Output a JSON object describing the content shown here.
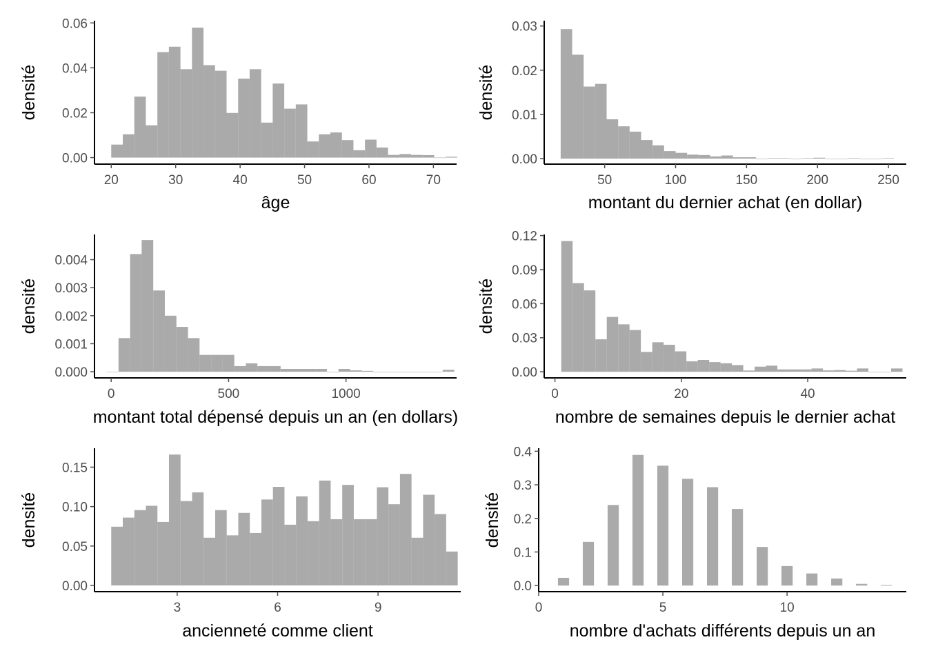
{
  "colors": {
    "bar": "#aaaaaa",
    "axis": "#000000",
    "tick_text": "#4d4d4d",
    "background": "#ffffff"
  },
  "chart_data": [
    {
      "type": "bar",
      "title": "",
      "xlabel": "âge",
      "ylabel": "densité",
      "xlim": [
        17.4,
        73.6
      ],
      "ylim": [
        -0.0029,
        0.061
      ],
      "x_ticks": [
        20,
        30,
        40,
        50,
        60,
        70
      ],
      "x_tick_labels": [
        "20",
        "30",
        "40",
        "50",
        "60",
        "70"
      ],
      "y_ticks": [
        0,
        0.02,
        0.04,
        0.06
      ],
      "y_tick_labels": [
        "0.00",
        "0.02",
        "0.04",
        "0.06"
      ],
      "bin_start": 20,
      "bin_width": 1.79,
      "values": [
        0.0058,
        0.0104,
        0.0272,
        0.0144,
        0.047,
        0.0494,
        0.0394,
        0.0579,
        0.0412,
        0.0387,
        0.0199,
        0.0352,
        0.0394,
        0.0156,
        0.033,
        0.0218,
        0.0237,
        0.0072,
        0.0104,
        0.0112,
        0.0078,
        0.0033,
        0.008,
        0.0045,
        0.0012,
        0.0016,
        0.0012,
        0.0011,
        0,
        0.0004
      ],
      "grid": false,
      "legend": "none"
    },
    {
      "type": "bar",
      "title": "",
      "xlabel": "montant du dernier achat (en dollar)",
      "ylabel": "densité",
      "xlim": [
        7.4,
        262.6
      ],
      "ylim": [
        -0.00125,
        0.0312
      ],
      "x_ticks": [
        50,
        100,
        150,
        200,
        250
      ],
      "x_tick_labels": [
        "50",
        "100",
        "150",
        "200",
        "250"
      ],
      "y_ticks": [
        0,
        0.01,
        0.02,
        0.03
      ],
      "y_tick_labels": [
        "0.00",
        "0.01",
        "0.02",
        "0.03"
      ],
      "bin_start": 19,
      "bin_width": 8.1,
      "values": [
        0.0293,
        0.0235,
        0.0163,
        0.0169,
        0.0089,
        0.0073,
        0.0061,
        0.0042,
        0.003,
        0.0017,
        0.0013,
        0.0009,
        0.0008,
        0.0005,
        0.0007,
        0.0003,
        0.0003,
        0,
        0.0001,
        0.0001,
        0,
        0.0001,
        0.0002,
        0,
        0,
        0.0001,
        0,
        0,
        0.0001
      ],
      "grid": false,
      "legend": "none"
    },
    {
      "type": "bar",
      "title": "",
      "xlabel": "montant total dépensé depuis un an (en dollars)",
      "ylabel": "densité",
      "xlim": [
        -71,
        1471
      ],
      "ylim": [
        -0.00022,
        0.0049
      ],
      "x_ticks": [
        0,
        500,
        1000
      ],
      "x_tick_labels": [
        "0",
        "500",
        "1000"
      ],
      "y_ticks": [
        0,
        0.001,
        0.002,
        0.003,
        0.004
      ],
      "y_tick_labels": [
        "0.000",
        "0.001",
        "0.002",
        "0.003",
        "0.004"
      ],
      "bin_start": -18,
      "bin_width": 49.3,
      "values": [
        0,
        0.0012,
        0.0042,
        0.0047,
        0.0029,
        0.002,
        0.0016,
        0.0012,
        0.0006,
        0.0006,
        0.0006,
        0.0002,
        0.0003,
        0.0002,
        0.0002,
        0.0001,
        0.0001,
        0.0001,
        0.0001,
        0,
        0.0001,
        5e-05,
        3e-05,
        0,
        0,
        0,
        0,
        0,
        0,
        7e-05
      ],
      "grid": false,
      "legend": "none"
    },
    {
      "type": "bar",
      "title": "",
      "xlabel": "nombre de semaines depuis le dernier achat",
      "ylabel": "densité",
      "xlim": [
        -1.7,
        55.6
      ],
      "ylim": [
        -0.0054,
        0.121
      ],
      "x_ticks": [
        0,
        20,
        40
      ],
      "x_tick_labels": [
        "0",
        "20",
        "40"
      ],
      "y_ticks": [
        0,
        0.03,
        0.06,
        0.09,
        0.12
      ],
      "y_tick_labels": [
        "0.00",
        "0.03",
        "0.06",
        "0.09",
        "0.12"
      ],
      "bin_start": 1,
      "bin_width": 1.8,
      "values": [
        0.1152,
        0.0781,
        0.0717,
        0.0286,
        0.0483,
        0.0418,
        0.0368,
        0.0175,
        0.026,
        0.0238,
        0.018,
        0.0092,
        0.0104,
        0.0085,
        0.0075,
        0.0059,
        0.0011,
        0.0045,
        0.0054,
        0.0021,
        0.0021,
        0.0021,
        0.0029,
        0.0012,
        0.0015,
        0.0009,
        0.0029,
        0,
        0,
        0.0029
      ],
      "grid": false,
      "legend": "none"
    },
    {
      "type": "bar",
      "title": "",
      "xlabel": "ancienneté comme client",
      "ylabel": "densité",
      "xlim": [
        0.53,
        11.47
      ],
      "ylim": [
        -0.0079,
        0.174
      ],
      "x_ticks": [
        3,
        6,
        9
      ],
      "x_tick_labels": [
        "3",
        "6",
        "9"
      ],
      "y_ticks": [
        0,
        0.05,
        0.1,
        0.15
      ],
      "y_tick_labels": [
        "0.00",
        "0.05",
        "0.10",
        "0.15"
      ],
      "bin_start": 1.03,
      "bin_width": 0.345,
      "values": [
        0.0745,
        0.086,
        0.0955,
        0.101,
        0.0805,
        0.166,
        0.107,
        0.118,
        0.0605,
        0.0955,
        0.0635,
        0.092,
        0.0665,
        0.109,
        0.125,
        0.077,
        0.113,
        0.0815,
        0.133,
        0.084,
        0.1275,
        0.084,
        0.084,
        0.1245,
        0.103,
        0.1415,
        0.0605,
        0.115,
        0.0905,
        0.043
      ],
      "grid": false,
      "legend": "none"
    },
    {
      "type": "bar",
      "title": "",
      "xlabel": "nombre d'achats différents depuis un an",
      "ylabel": "densité",
      "xlim": [
        0,
        14.8
      ],
      "ylim": [
        -0.0182,
        0.409
      ],
      "x_ticks": [
        0,
        5,
        10
      ],
      "x_tick_labels": [
        "0",
        "5",
        "10"
      ],
      "y_ticks": [
        0,
        0.1,
        0.2,
        0.3,
        0.4
      ],
      "y_tick_labels": [
        "0.0",
        "0.1",
        "0.2",
        "0.3",
        "0.4"
      ],
      "categories": [
        1,
        2,
        3,
        4,
        5,
        6,
        7,
        8,
        9,
        10,
        11,
        12,
        13,
        14
      ],
      "bar_width": 0.45,
      "values": [
        0.023,
        0.13,
        0.24,
        0.389,
        0.357,
        0.318,
        0.293,
        0.228,
        0.115,
        0.058,
        0.036,
        0.021,
        0.005,
        0.002
      ],
      "grid": false,
      "legend": "none"
    }
  ]
}
